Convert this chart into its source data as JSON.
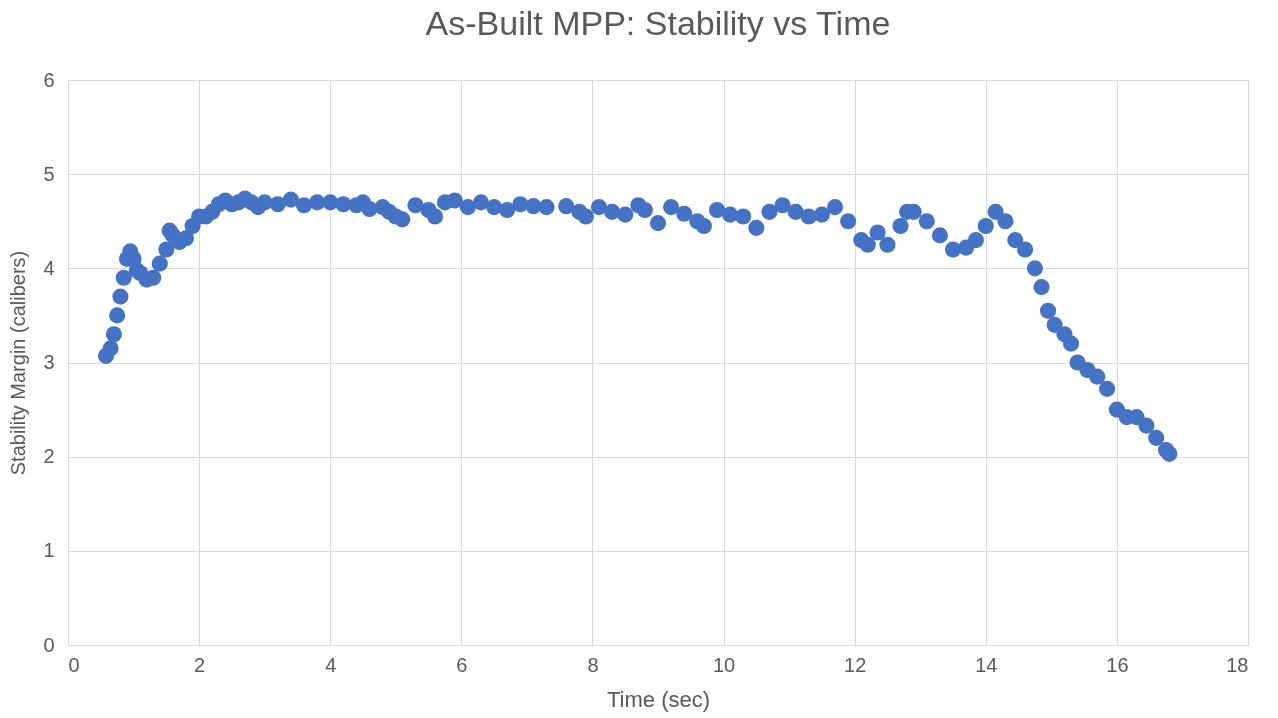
{
  "chart_data": {
    "type": "scatter",
    "title": "As-Built MPP: Stability vs Time",
    "xlabel": "Time (sec)",
    "ylabel": "Stability Margin (calibers)",
    "xlim": [
      0,
      18
    ],
    "xticks": [
      0,
      2,
      4,
      6,
      8,
      10,
      12,
      14,
      16,
      18
    ],
    "ylim": [
      0,
      6
    ],
    "yticks": [
      0,
      1,
      2,
      3,
      4,
      5,
      6
    ],
    "grid": true,
    "marker": "circle",
    "legend": false,
    "series": [
      {
        "color": "#4472c4",
        "x": [
          0.58,
          0.65,
          0.7,
          0.75,
          0.8,
          0.85,
          0.9,
          0.95,
          1.0,
          1.05,
          1.1,
          1.2,
          1.3,
          1.4,
          1.5,
          1.55,
          1.6,
          1.7,
          1.8,
          1.9,
          2.0,
          2.1,
          2.2,
          2.3,
          2.4,
          2.5,
          2.6,
          2.7,
          2.8,
          2.9,
          3.0,
          3.2,
          3.4,
          3.6,
          3.8,
          4.0,
          4.2,
          4.4,
          4.5,
          4.6,
          4.8,
          4.9,
          5.0,
          5.1,
          5.3,
          5.5,
          5.6,
          5.75,
          5.9,
          6.1,
          6.3,
          6.5,
          6.7,
          6.9,
          7.1,
          7.3,
          7.6,
          7.8,
          7.9,
          8.1,
          8.3,
          8.5,
          8.7,
          8.8,
          9.0,
          9.2,
          9.4,
          9.6,
          9.7,
          9.9,
          10.1,
          10.3,
          10.5,
          10.7,
          10.9,
          11.1,
          11.3,
          11.5,
          11.7,
          11.9,
          12.1,
          12.2,
          12.35,
          12.5,
          12.7,
          12.8,
          12.9,
          13.1,
          13.3,
          13.5,
          13.7,
          13.85,
          14.0,
          14.15,
          14.3,
          14.45,
          14.6,
          14.75,
          14.85,
          14.95,
          15.05,
          15.2,
          15.3,
          15.4,
          15.55,
          15.7,
          15.85,
          16.0,
          16.15,
          16.3,
          16.45,
          16.6,
          16.75,
          16.8
        ],
        "values": [
          3.07,
          3.15,
          3.3,
          3.5,
          3.7,
          3.9,
          4.1,
          4.18,
          4.1,
          3.98,
          3.95,
          3.88,
          3.9,
          4.05,
          4.2,
          4.4,
          4.35,
          4.28,
          4.32,
          4.45,
          4.55,
          4.55,
          4.6,
          4.68,
          4.72,
          4.68,
          4.7,
          4.74,
          4.7,
          4.65,
          4.7,
          4.68,
          4.73,
          4.67,
          4.7,
          4.7,
          4.68,
          4.67,
          4.7,
          4.63,
          4.65,
          4.6,
          4.55,
          4.52,
          4.67,
          4.62,
          4.55,
          4.7,
          4.72,
          4.65,
          4.7,
          4.65,
          4.62,
          4.68,
          4.66,
          4.65,
          4.66,
          4.6,
          4.55,
          4.65,
          4.6,
          4.57,
          4.67,
          4.62,
          4.48,
          4.65,
          4.58,
          4.5,
          4.45,
          4.62,
          4.57,
          4.55,
          4.43,
          4.6,
          4.67,
          4.6,
          4.55,
          4.57,
          4.65,
          4.5,
          4.3,
          4.25,
          4.38,
          4.25,
          4.45,
          4.6,
          4.6,
          4.5,
          4.35,
          4.2,
          4.22,
          4.3,
          4.45,
          4.6,
          4.5,
          4.3,
          4.2,
          4.0,
          3.8,
          3.55,
          3.4,
          3.3,
          3.2,
          3.0,
          2.92,
          2.85,
          2.72,
          2.5,
          2.42,
          2.42,
          2.33,
          2.2,
          2.07,
          2.03
        ]
      }
    ]
  }
}
